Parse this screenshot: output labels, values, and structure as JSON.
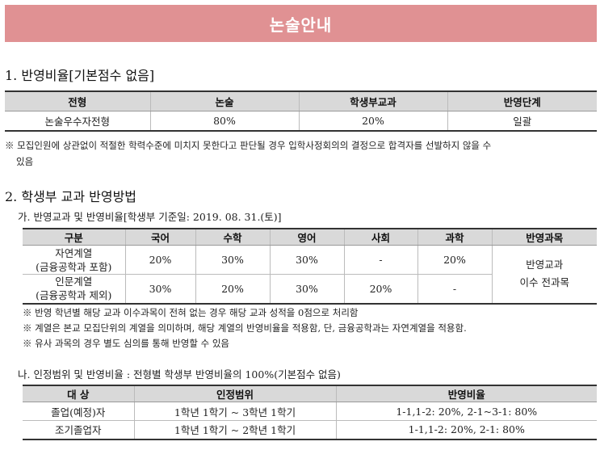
{
  "banner": {
    "title": "논술안내"
  },
  "section1": {
    "heading": "1. 반영비율[기본점수 없음]",
    "table": {
      "headers": [
        "전형",
        "논술",
        "학생부교과",
        "반영단계"
      ],
      "row": [
        "논술우수자전형",
        "80%",
        "20%",
        "일괄"
      ]
    },
    "note_line1": "※ 모집인원에 상관없이 적절한 학력수준에 미치지 못한다고 판단될 경우 입학사정회의의 결정으로 합격자를 선발하지 않을 수",
    "note_line2": "있음"
  },
  "section2": {
    "heading": "2. 학생부 교과 반영방법",
    "subA": "가. 반영교과 및 반영비율[학생부 기준일: 2019. 08. 31.(토)]",
    "tableA": {
      "headers": [
        "구분",
        "국어",
        "수학",
        "영어",
        "사회",
        "과학",
        "반영과목"
      ],
      "rows": [
        {
          "label1": "자연계열",
          "label2": "(금융공학과 포함)",
          "cells": [
            "20%",
            "30%",
            "30%",
            "-",
            "20%"
          ]
        },
        {
          "label1": "인문계열",
          "label2": "(금융공학과 제외)",
          "cells": [
            "30%",
            "20%",
            "30%",
            "20%",
            "-"
          ]
        }
      ],
      "merged_line1": "반영교과",
      "merged_line2": "이수 전과목"
    },
    "notesA": [
      "※ 반영 학년별 해당 교과 이수과목이 전혀 없는 경우 해당 교과 성적을 0점으로 처리함",
      "※ 계열은 본교 모집단위의 계열을 의미하며, 해당 계열의 반영비율을 적용함, 단, 금융공학과는 자연계열을 적용함.",
      "※ 유사 과목의 경우 별도 심의를 통해 반영할 수 있음"
    ],
    "subB": "나. 인정범위 및 반영비율 : 전형별 학생부 반영비율의 100%(기본점수 없음)",
    "tableB": {
      "headers": [
        "대 상",
        "인정범위",
        "반영비율"
      ],
      "rows": [
        [
          "졸업(예정)자",
          "1학년 1학기 ~ 3학년 1학기",
          "1-1,1-2: 20%, 2-1~3-1: 80%"
        ],
        [
          "조기졸업자",
          "1학년 1학기 ~ 2학년 1학기",
          "1-1,1-2: 20%, 2-1: 80%"
        ]
      ]
    }
  }
}
